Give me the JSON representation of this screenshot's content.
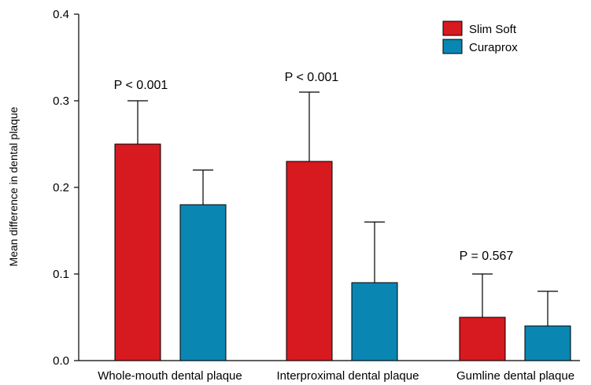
{
  "chart_data": {
    "type": "bar",
    "title": "",
    "xlabel": "",
    "ylabel": "Mean difference in dental plaque",
    "ylim": [
      0,
      0.4
    ],
    "yticks": [
      "0.0",
      "0.1",
      "0.2",
      "0.3",
      "0.4"
    ],
    "categories": [
      "Whole-mouth dental plaque",
      "Interproximal dental plaque",
      "Gumline dental plaque"
    ],
    "series": [
      {
        "name": "Slim Soft",
        "color": "#d71920",
        "values": [
          0.25,
          0.23,
          0.05
        ],
        "error_upper": [
          0.3,
          0.31,
          0.1
        ]
      },
      {
        "name": "Curaprox",
        "color": "#0a86b3",
        "values": [
          0.18,
          0.09,
          0.04
        ],
        "error_upper": [
          0.22,
          0.16,
          0.08
        ]
      }
    ],
    "annotations": [
      "P < 0.001",
      "P < 0.001",
      "P = 0.567"
    ],
    "legend_position": "top-right",
    "grid": false
  }
}
